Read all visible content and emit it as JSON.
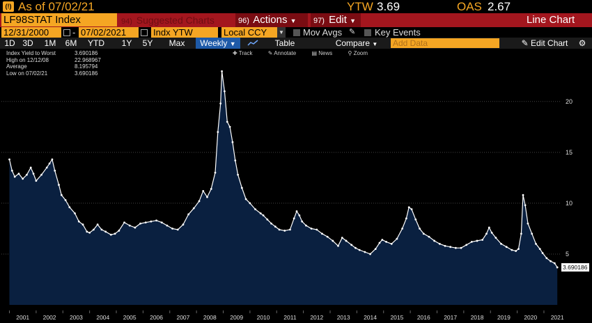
{
  "header": {
    "fn_icon": "(!)",
    "as_of": "As of 07/02/21",
    "ytw_label": "YTW",
    "ytw_value": "3.69",
    "oas_label": "OAS",
    "oas_value": "2.67"
  },
  "toolbar": {
    "ticker": "LF98STAT Index",
    "suggested_num": "94)",
    "suggested_label": "Suggested Charts",
    "actions_num": "96)",
    "actions_label": "Actions",
    "edit_num": "97)",
    "edit_label": "Edit",
    "view_label": "Line Chart"
  },
  "settings": {
    "start_date": "12/31/2000",
    "end_date": "07/02/2021",
    "field": "Indx YTW",
    "currency": "Local CCY",
    "mov_avgs": "Mov Avgs",
    "key_events": "Key Events"
  },
  "ranges": {
    "buttons": [
      "1D",
      "3D",
      "1M",
      "6M",
      "YTD",
      "1Y",
      "5Y",
      "Max"
    ],
    "frequency": "Weekly",
    "table_label": "Table",
    "compare_label": "Compare",
    "add_data_placeholder": "Add Data",
    "edit_chart_label": "Edit Chart"
  },
  "chart_tools": {
    "track": "Track",
    "annotate": "Annotate",
    "news": "News",
    "zoom": "Zoom"
  },
  "legend": [
    {
      "label": "Index Yield to Worst",
      "value": "3.690186"
    },
    {
      "label": "High on 12/12/08",
      "value": "22.968967"
    },
    {
      "label": "Average",
      "value": "8.195794"
    },
    {
      "label": "Low on 07/02/21",
      "value": "3.690186"
    }
  ],
  "last_value_tag": "3.690186",
  "colors": {
    "accent": "#f5a623",
    "banner": "#a3161e",
    "fill": "#0a2040",
    "line": "#ffffff"
  },
  "chart_data": {
    "type": "area",
    "series": [
      {
        "name": "Index Yield to Worst",
        "points": [
          [
            2001.0,
            14.3
          ],
          [
            2001.1,
            13.2
          ],
          [
            2001.2,
            12.6
          ],
          [
            2001.35,
            12.9
          ],
          [
            2001.5,
            12.4
          ],
          [
            2001.65,
            12.8
          ],
          [
            2001.8,
            13.5
          ],
          [
            2001.9,
            12.9
          ],
          [
            2002.0,
            12.2
          ],
          [
            2002.2,
            12.8
          ],
          [
            2002.4,
            13.5
          ],
          [
            2002.5,
            13.9
          ],
          [
            2002.6,
            14.3
          ],
          [
            2002.7,
            13.2
          ],
          [
            2002.85,
            11.8
          ],
          [
            2002.95,
            10.8
          ],
          [
            2003.1,
            10.3
          ],
          [
            2003.25,
            9.6
          ],
          [
            2003.45,
            9.0
          ],
          [
            2003.6,
            8.2
          ],
          [
            2003.75,
            7.9
          ],
          [
            2003.9,
            7.2
          ],
          [
            2004.0,
            7.1
          ],
          [
            2004.15,
            7.4
          ],
          [
            2004.3,
            7.9
          ],
          [
            2004.45,
            7.4
          ],
          [
            2004.6,
            7.2
          ],
          [
            2004.8,
            6.9
          ],
          [
            2004.95,
            7.0
          ],
          [
            2005.1,
            7.3
          ],
          [
            2005.3,
            8.1
          ],
          [
            2005.5,
            7.8
          ],
          [
            2005.7,
            7.6
          ],
          [
            2005.9,
            8.0
          ],
          [
            2006.1,
            8.1
          ],
          [
            2006.3,
            8.2
          ],
          [
            2006.5,
            8.3
          ],
          [
            2006.7,
            8.1
          ],
          [
            2006.9,
            7.8
          ],
          [
            2007.1,
            7.5
          ],
          [
            2007.3,
            7.4
          ],
          [
            2007.5,
            7.9
          ],
          [
            2007.7,
            8.9
          ],
          [
            2007.9,
            9.5
          ],
          [
            2008.1,
            10.2
          ],
          [
            2008.25,
            11.2
          ],
          [
            2008.4,
            10.6
          ],
          [
            2008.55,
            11.4
          ],
          [
            2008.7,
            13.0
          ],
          [
            2008.8,
            17.0
          ],
          [
            2008.9,
            19.8
          ],
          [
            2008.95,
            22.97
          ],
          [
            2009.05,
            21.0
          ],
          [
            2009.15,
            18.0
          ],
          [
            2009.25,
            17.5
          ],
          [
            2009.35,
            16.0
          ],
          [
            2009.45,
            14.2
          ],
          [
            2009.55,
            12.8
          ],
          [
            2009.7,
            11.5
          ],
          [
            2009.85,
            10.4
          ],
          [
            2010.0,
            10.0
          ],
          [
            2010.2,
            9.4
          ],
          [
            2010.4,
            9.0
          ],
          [
            2010.5,
            8.8
          ],
          [
            2010.65,
            8.4
          ],
          [
            2010.8,
            8.0
          ],
          [
            2010.95,
            7.7
          ],
          [
            2011.1,
            7.4
          ],
          [
            2011.3,
            7.3
          ],
          [
            2011.5,
            7.4
          ],
          [
            2011.65,
            8.5
          ],
          [
            2011.75,
            9.2
          ],
          [
            2011.85,
            8.8
          ],
          [
            2011.95,
            8.2
          ],
          [
            2012.1,
            7.8
          ],
          [
            2012.3,
            7.5
          ],
          [
            2012.5,
            7.4
          ],
          [
            2012.7,
            7.0
          ],
          [
            2012.9,
            6.7
          ],
          [
            2013.1,
            6.3
          ],
          [
            2013.3,
            5.8
          ],
          [
            2013.45,
            6.6
          ],
          [
            2013.6,
            6.3
          ],
          [
            2013.8,
            5.9
          ],
          [
            2013.95,
            5.6
          ],
          [
            2014.1,
            5.4
          ],
          [
            2014.3,
            5.2
          ],
          [
            2014.5,
            5.0
          ],
          [
            2014.7,
            5.5
          ],
          [
            2014.85,
            6.1
          ],
          [
            2014.95,
            6.4
          ],
          [
            2015.1,
            6.2
          ],
          [
            2015.3,
            6.0
          ],
          [
            2015.5,
            6.5
          ],
          [
            2015.7,
            7.5
          ],
          [
            2015.85,
            8.5
          ],
          [
            2015.95,
            9.6
          ],
          [
            2016.05,
            9.4
          ],
          [
            2016.2,
            8.4
          ],
          [
            2016.35,
            7.5
          ],
          [
            2016.5,
            7.0
          ],
          [
            2016.7,
            6.7
          ],
          [
            2016.9,
            6.3
          ],
          [
            2017.1,
            6.0
          ],
          [
            2017.3,
            5.8
          ],
          [
            2017.5,
            5.7
          ],
          [
            2017.7,
            5.6
          ],
          [
            2017.9,
            5.6
          ],
          [
            2018.1,
            5.9
          ],
          [
            2018.3,
            6.2
          ],
          [
            2018.5,
            6.3
          ],
          [
            2018.7,
            6.4
          ],
          [
            2018.85,
            7.0
          ],
          [
            2018.95,
            7.6
          ],
          [
            2019.05,
            7.1
          ],
          [
            2019.2,
            6.6
          ],
          [
            2019.4,
            6.0
          ],
          [
            2019.6,
            5.7
          ],
          [
            2019.8,
            5.4
          ],
          [
            2019.95,
            5.3
          ],
          [
            2020.05,
            5.5
          ],
          [
            2020.15,
            7.0
          ],
          [
            2020.22,
            10.8
          ],
          [
            2020.3,
            9.8
          ],
          [
            2020.4,
            8.0
          ],
          [
            2020.55,
            7.0
          ],
          [
            2020.7,
            6.0
          ],
          [
            2020.85,
            5.5
          ],
          [
            2020.95,
            5.1
          ],
          [
            2021.1,
            4.6
          ],
          [
            2021.25,
            4.3
          ],
          [
            2021.4,
            4.1
          ],
          [
            2021.5,
            3.69
          ]
        ]
      }
    ],
    "x_ticks": [
      "2001",
      "2002",
      "2003",
      "2004",
      "2005",
      "2006",
      "2007",
      "2008",
      "2009",
      "2010",
      "2011",
      "2012",
      "2013",
      "2014",
      "2015",
      "2016",
      "2017",
      "2018",
      "2019",
      "2020",
      "2021"
    ],
    "y_ticks": [
      5,
      10,
      15,
      20
    ],
    "xlim": [
      2000.7,
      2021.6
    ],
    "ylim": [
      0,
      24.5
    ],
    "grid": true,
    "legend_position": "top-left"
  }
}
